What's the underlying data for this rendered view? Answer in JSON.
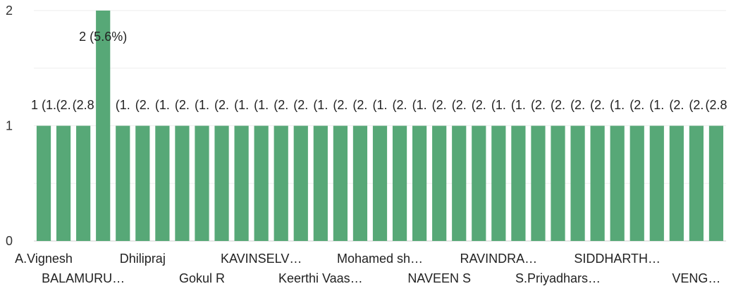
{
  "chart_data": {
    "type": "bar",
    "color": "#57a877",
    "grid": true,
    "ylim": [
      0,
      2
    ],
    "yticks": [
      "0",
      "1",
      "2"
    ],
    "categories": [
      "A.Vignesh",
      "",
      "BALAMURU…",
      "",
      "",
      "Dhilipraj",
      "",
      "",
      "Gokul R",
      "",
      "",
      "KAVINSELV…",
      "",
      "",
      "Keerthi Vaas…",
      "",
      "",
      "Mohamed sh…",
      "",
      "",
      "NAVEEN S",
      "",
      "",
      "RAVINDRA…",
      "",
      "",
      "S.Priyadhars…",
      "",
      "",
      "SIDDHARTH…",
      "",
      "",
      "",
      "VENG…",
      ""
    ],
    "values": [
      1,
      1,
      1,
      2,
      1,
      1,
      1,
      1,
      1,
      1,
      1,
      1,
      1,
      1,
      1,
      1,
      1,
      1,
      1,
      1,
      1,
      1,
      1,
      1,
      1,
      1,
      1,
      1,
      1,
      1,
      1,
      1,
      1,
      1,
      1
    ],
    "data_labels": [
      "1 (1.",
      "(2.",
      "(2.8",
      "2 (5.6%)",
      "(1.",
      "(2.",
      "(1.",
      "(2.",
      "(1.",
      "(2.",
      "(1.",
      "(1.",
      "(2.",
      "(2.",
      "(1.",
      "(2.",
      "(2.",
      "(1.",
      "(2.",
      "(1.",
      "(2.",
      "(2.",
      "(2.",
      "(1.",
      "(1.",
      "(2.",
      "(2.",
      "(2.",
      "(2.",
      "(1.",
      "(2.",
      "(1.",
      "(2.",
      "(2.",
      "(2.8"
    ]
  }
}
